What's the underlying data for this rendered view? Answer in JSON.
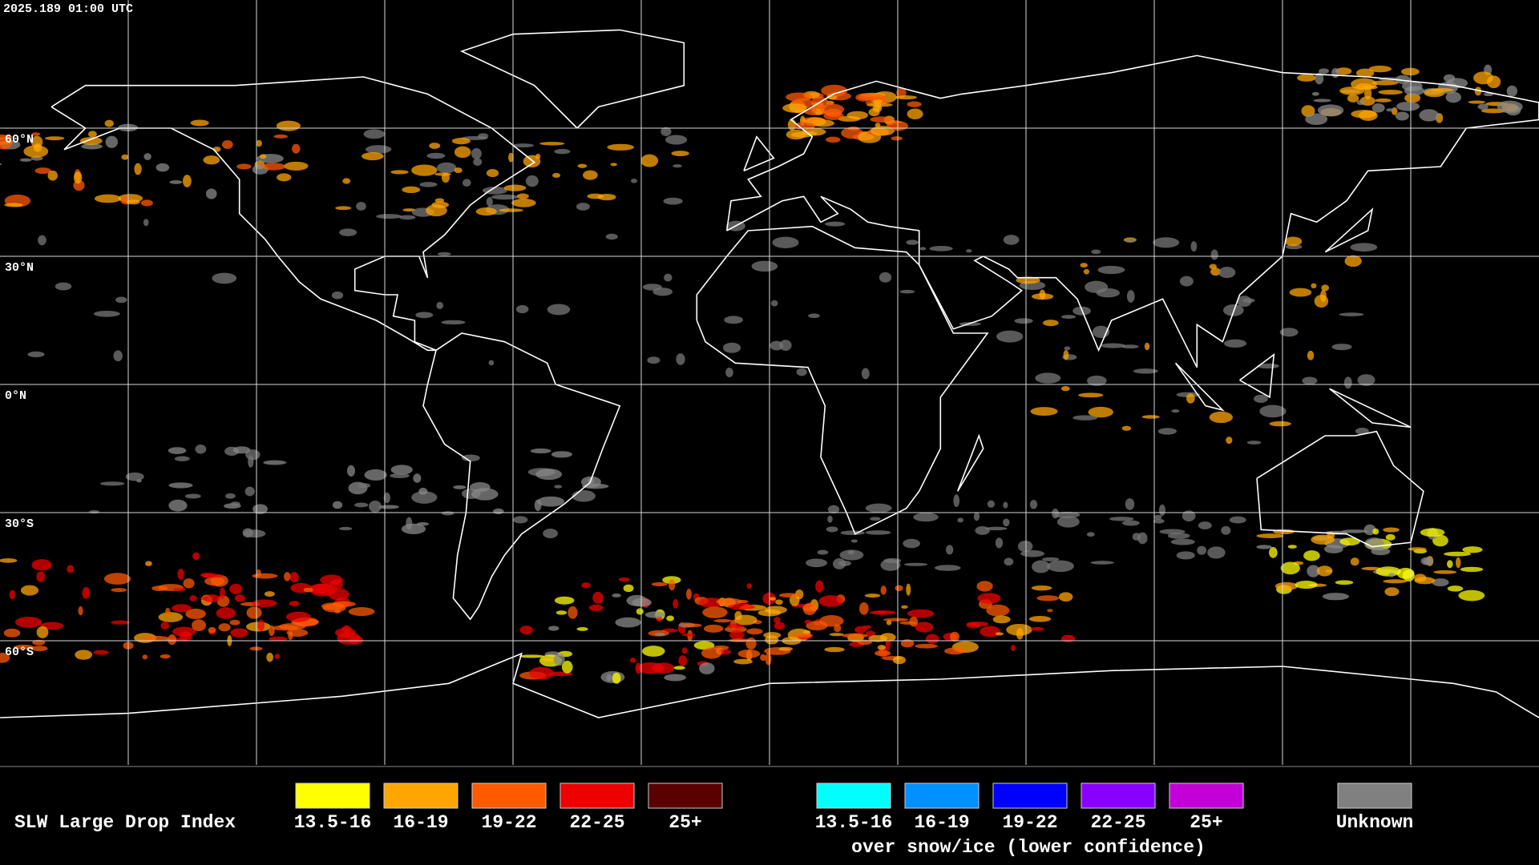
{
  "timestamp": "2025.189 01:00 UTC",
  "latitude_labels": [
    "60°N",
    "30°N",
    "0°N",
    "30°S",
    "60°S"
  ],
  "legend": {
    "title": "SLW Large Drop Index",
    "items": [
      {
        "label": "13.5-16",
        "color": "#ffff00"
      },
      {
        "label": "16-19",
        "color": "#ffa500"
      },
      {
        "label": "19-22",
        "color": "#ff5a00"
      },
      {
        "label": "22-25",
        "color": "#ee0000"
      },
      {
        "label": "25+",
        "color": "#5a0000"
      }
    ],
    "snow_items": [
      {
        "label": "13.5-16",
        "color": "#00ffff"
      },
      {
        "label": "16-19",
        "color": "#0090ff"
      },
      {
        "label": "19-22",
        "color": "#0000ff"
      },
      {
        "label": "22-25",
        "color": "#8a00ff"
      },
      {
        "label": "25+",
        "color": "#c400d8"
      }
    ],
    "snow_caption": "over snow/ice (lower confidence)",
    "unknown": {
      "label": "Unknown",
      "color": "#808080"
    }
  }
}
